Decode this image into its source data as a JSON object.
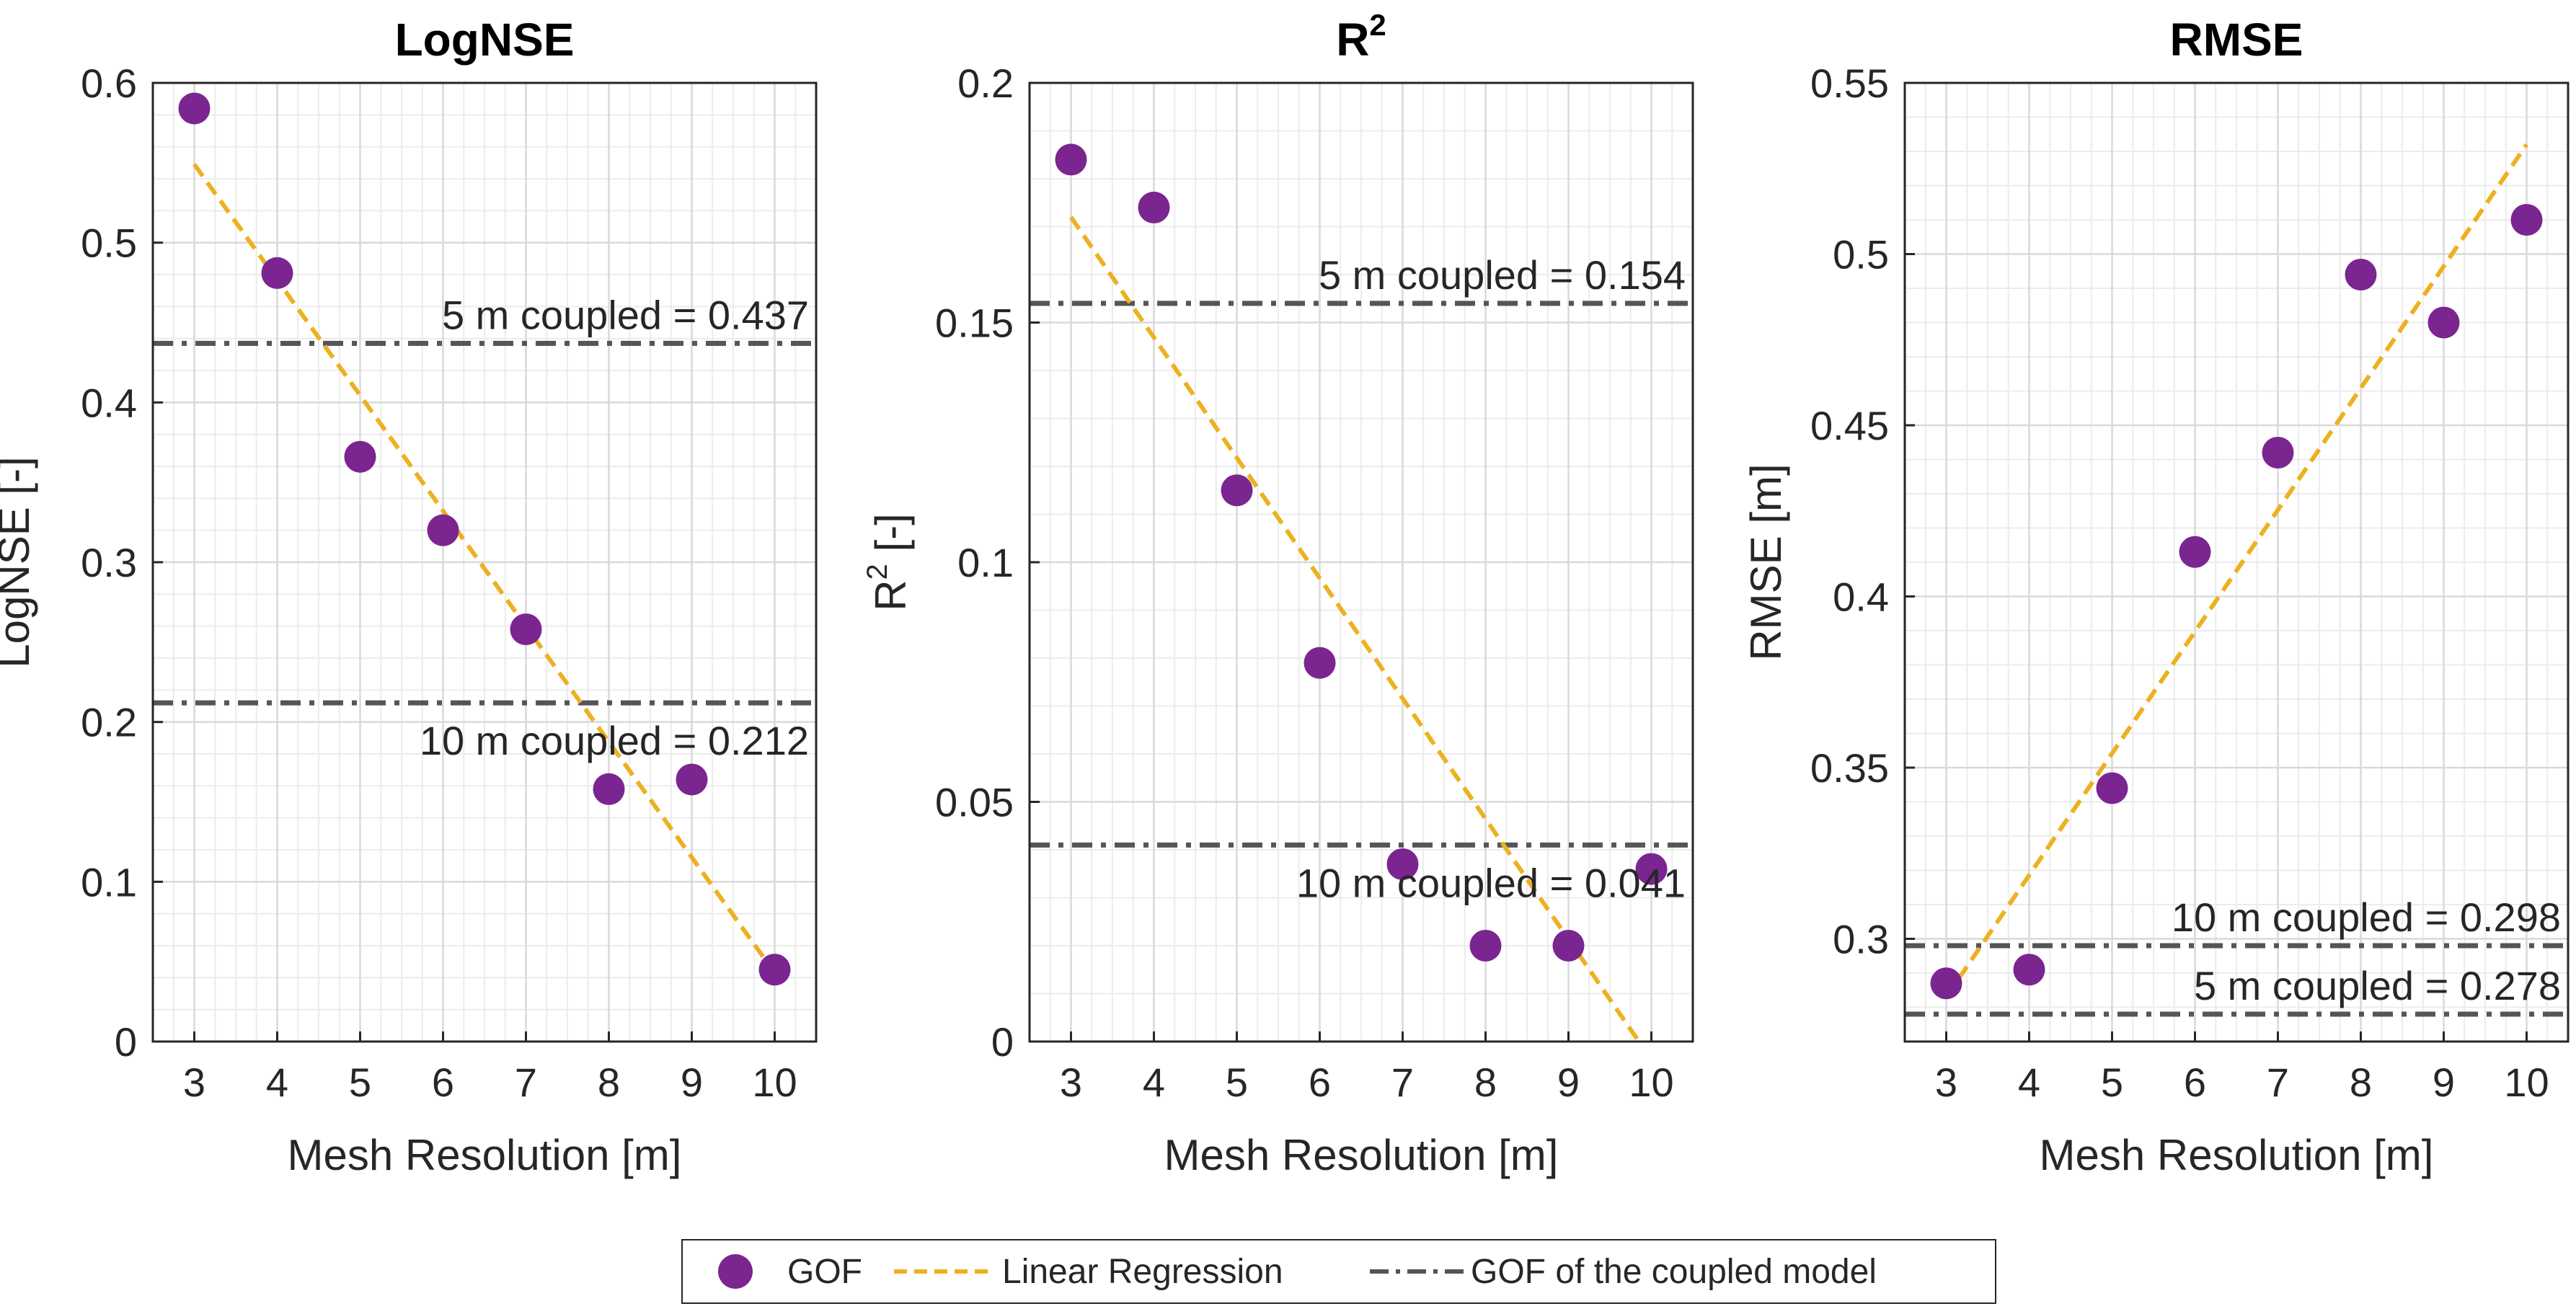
{
  "chart_data": [
    {
      "type": "scatter",
      "title": "LogNSE",
      "title_sup": "",
      "xlabel": "Mesh Resolution [m]",
      "ylabel": "LogNSE [-]",
      "ylabel_sup": "",
      "ylabel_suffix": "",
      "xlim": [
        2.5,
        10.5
      ],
      "ylim": [
        0,
        0.6
      ],
      "xticks": [
        "3",
        "4",
        "5",
        "6",
        "7",
        "8",
        "9",
        "10"
      ],
      "yticks": [
        "0",
        "0.1",
        "0.2",
        "0.3",
        "0.4",
        "0.5",
        "0.6"
      ],
      "yticks_values": [
        0,
        0.1,
        0.2,
        0.3,
        0.4,
        0.5,
        0.6
      ],
      "grid": true,
      "series": [
        {
          "name": "GOF",
          "x": [
            3,
            4,
            5,
            6,
            7,
            8,
            9,
            10
          ],
          "y": [
            0.584,
            0.481,
            0.366,
            0.32,
            0.258,
            0.158,
            0.164,
            0.045
          ]
        }
      ],
      "regression": {
        "name": "Linear Regression",
        "x": [
          3,
          10
        ],
        "y": [
          0.549,
          0.043
        ]
      },
      "reference_lines": [
        {
          "value": 0.437,
          "label": "5 m coupled = 0.437",
          "label_pos": "above"
        },
        {
          "value": 0.212,
          "label": "10 m coupled = 0.212",
          "label_pos": "below"
        }
      ]
    },
    {
      "type": "scatter",
      "title": "R",
      "title_sup": "2",
      "xlabel": "Mesh Resolution [m]",
      "ylabel": "R",
      "ylabel_sup": "2",
      "ylabel_suffix": " [-]",
      "xlim": [
        2.5,
        10.5
      ],
      "ylim": [
        0,
        0.2
      ],
      "xticks": [
        "3",
        "4",
        "5",
        "6",
        "7",
        "8",
        "9",
        "10"
      ],
      "yticks": [
        "0",
        "0.05",
        "0.1",
        "0.15",
        "0.2"
      ],
      "yticks_values": [
        0,
        0.05,
        0.1,
        0.15,
        0.2
      ],
      "grid": true,
      "series": [
        {
          "name": "GOF",
          "x": [
            3,
            4,
            5,
            6,
            7,
            8,
            9,
            10
          ],
          "y": [
            0.184,
            0.174,
            0.115,
            0.079,
            0.037,
            0.02,
            0.02,
            0.036
          ]
        }
      ],
      "regression": {
        "name": "Linear Regression",
        "x": [
          3,
          9.85
        ],
        "y": [
          0.172,
          0.0
        ]
      },
      "reference_lines": [
        {
          "value": 0.154,
          "label": "5 m coupled = 0.154",
          "label_pos": "above"
        },
        {
          "value": 0.041,
          "label": "10 m coupled = 0.041",
          "label_pos": "below"
        }
      ]
    },
    {
      "type": "scatter",
      "title": "RMSE",
      "title_sup": "",
      "xlabel": "Mesh Resolution [m]",
      "ylabel": "RMSE [m]",
      "ylabel_sup": "",
      "ylabel_suffix": "",
      "xlim": [
        2.5,
        10.5
      ],
      "ylim": [
        0.27,
        0.55
      ],
      "xticks": [
        "3",
        "4",
        "5",
        "6",
        "7",
        "8",
        "9",
        "10"
      ],
      "yticks": [
        "0.3",
        "0.35",
        "0.4",
        "0.45",
        "0.5",
        "0.55"
      ],
      "yticks_values": [
        0.3,
        0.35,
        0.4,
        0.45,
        0.5,
        0.55
      ],
      "grid": true,
      "series": [
        {
          "name": "GOF",
          "x": [
            3,
            4,
            5,
            6,
            7,
            8,
            9,
            10
          ],
          "y": [
            0.287,
            0.291,
            0.344,
            0.413,
            0.442,
            0.494,
            0.48,
            0.51
          ]
        }
      ],
      "regression": {
        "name": "Linear Regression",
        "x": [
          3,
          10
        ],
        "y": [
          0.283,
          0.532
        ]
      },
      "reference_lines": [
        {
          "value": 0.298,
          "label": "10 m coupled = 0.298",
          "label_pos": "above"
        },
        {
          "value": 0.278,
          "label": "5 m coupled = 0.278",
          "label_pos": "above"
        }
      ]
    }
  ],
  "legend": {
    "placement": "bottom-center",
    "items": [
      {
        "label": "GOF",
        "kind": "marker"
      },
      {
        "label": "Linear Regression",
        "kind": "dashed"
      },
      {
        "label": "GOF of the coupled model",
        "kind": "dashdot"
      }
    ]
  },
  "colors": {
    "marker": "#7B2590",
    "regression": "#EDB120",
    "reference": "#555555",
    "grid_major": "#d9d9d9",
    "grid_minor": "#ececec",
    "axis": "#262626"
  }
}
